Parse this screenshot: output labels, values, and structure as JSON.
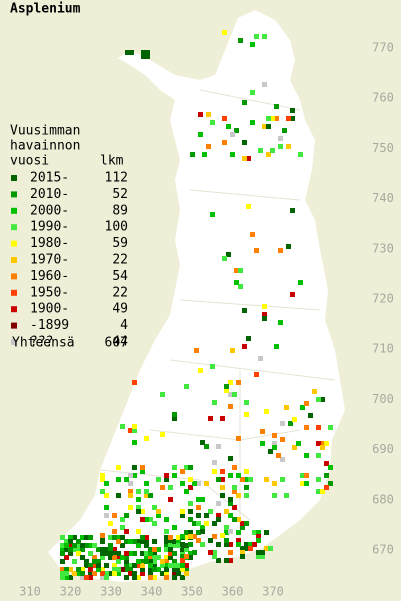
{
  "title": "Asplenium",
  "legend": {
    "heading": [
      "Vuusimman",
      "havainnon",
      "vuosi"
    ],
    "count_header": "lkm",
    "entries": [
      {
        "label": "2015-",
        "count": 112,
        "color": "#006400"
      },
      {
        "label": "2010-",
        "count": 52,
        "color": "#009a00"
      },
      {
        "label": "2000-",
        "count": 89,
        "color": "#00c000"
      },
      {
        "label": "1990-",
        "count": 100,
        "color": "#40e840"
      },
      {
        "label": "1980-",
        "count": 59,
        "color": "#ffff00"
      },
      {
        "label": "1970-",
        "count": 22,
        "color": "#ffc800"
      },
      {
        "label": "1960-",
        "count": 54,
        "color": "#ff8000"
      },
      {
        "label": "1950-",
        "count": 22,
        "color": "#ff4000"
      },
      {
        "label": "1900-",
        "count": 49,
        "color": "#c80000"
      },
      {
        "label": "-1899",
        "count": 4,
        "color": "#800000"
      },
      {
        "label": "???",
        "count": 44,
        "color": "#c8c8c8"
      }
    ],
    "total_label": "Yhteensä",
    "total": 607
  },
  "x_axis": [
    310,
    320,
    330,
    340,
    350,
    360,
    370
  ],
  "y_axis": [
    670,
    680,
    690,
    700,
    710,
    720,
    730,
    740,
    750,
    760,
    770
  ]
}
